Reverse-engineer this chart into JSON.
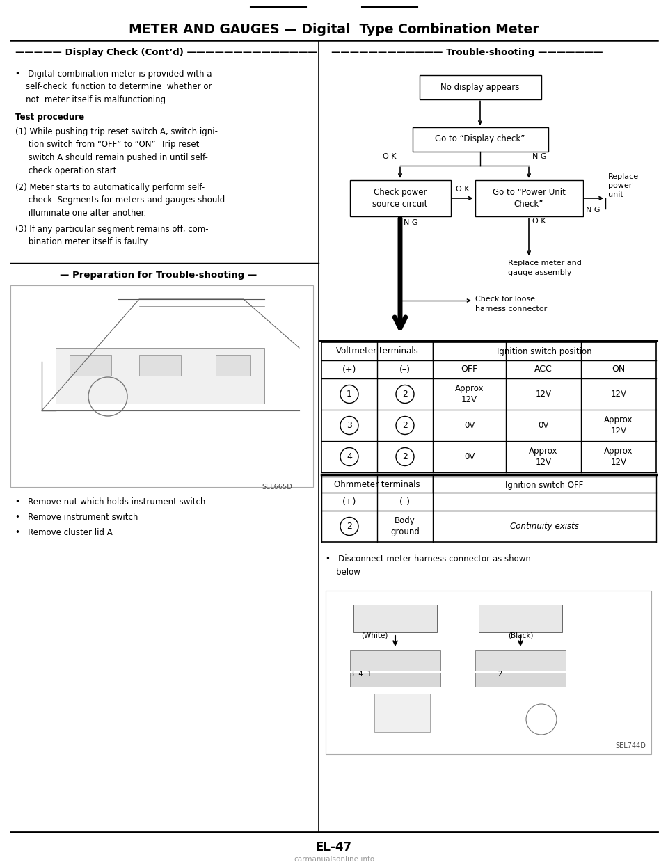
{
  "title": "METER AND GAUGES — Digital  Type Combination Meter",
  "left_section_title": "Display Check (Cont’d)",
  "right_section_title": "Trouble-shooting",
  "prep_title": "Preparation for Trouble-shooting",
  "bullet_points_bottom": [
    "Remove nut which holds instrument switch",
    "Remove instrument switch",
    "Remove cluster lid A"
  ],
  "right_bullet": "Disconnect meter harness connector as shown\nbelow",
  "table1_sub_header": [
    "(+)",
    "(–)",
    "OFF",
    "ACC",
    "ON"
  ],
  "table1_rows": [
    [
      "①",
      "②",
      "Approx\n12V",
      "12V",
      "12V"
    ],
    [
      "③",
      "②",
      "0V",
      "0V",
      "Approx\n12V"
    ],
    [
      "④",
      "②",
      "0V",
      "Approx\n12V",
      "Approx\n12V"
    ]
  ],
  "table2_sub_header": [
    "(+)",
    "(–)"
  ],
  "table2_rows": [
    [
      "②",
      "Body\nground",
      "Continuity exists"
    ]
  ],
  "page_number": "EL-47",
  "watermark": "carmanualsonline.info",
  "bg_color": "#ffffff"
}
